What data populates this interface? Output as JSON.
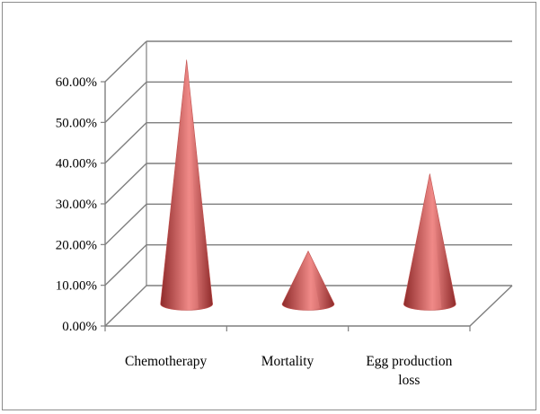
{
  "chart_data": {
    "type": "bar",
    "style": "3d-cone",
    "categories": [
      "Chemotherapy",
      "Mortality",
      "Egg production loss"
    ],
    "category_lines": [
      [
        "Chemotherapy"
      ],
      [
        "Mortality"
      ],
      [
        "Egg production",
        "loss"
      ]
    ],
    "values": [
      0.6,
      0.13,
      0.32
    ],
    "ylim": [
      0,
      0.6
    ],
    "yticks": [
      0,
      0.1,
      0.2,
      0.3,
      0.4,
      0.5,
      0.6
    ],
    "ytick_labels": [
      "0.00%",
      "10.00%",
      "20.00%",
      "30.00%",
      "40.00%",
      "50.00%",
      "60.00%"
    ],
    "title": "",
    "xlabel": "",
    "ylabel": "",
    "grid": true,
    "legend": "none",
    "colors": {
      "cone_dark": "#8e2a2a",
      "cone_mid": "#c0504d",
      "cone_light": "#f08a88",
      "gridline": "#7f7f7f",
      "axis": "#7f7f7f"
    }
  }
}
